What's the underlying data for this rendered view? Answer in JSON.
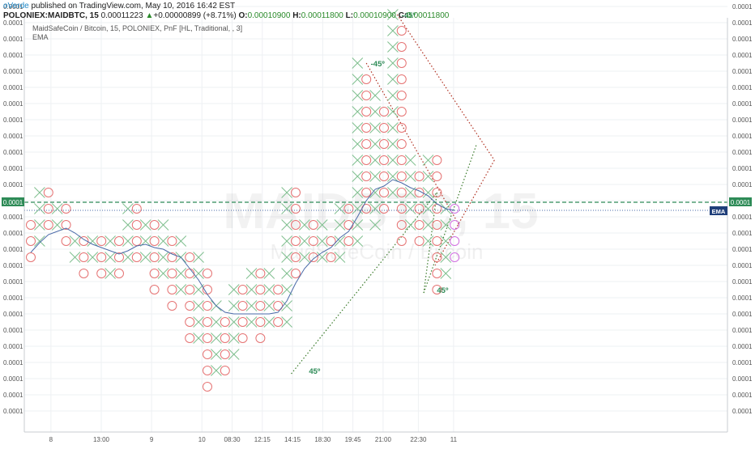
{
  "header": {
    "author": "oVerde",
    "published": "published on TradingView.com, May 10, 2016 16:42 EST",
    "symbol": "POLONIEX:MAIDBTC, 15",
    "last": "0.00011223",
    "change": "+0.00000899 (+8.71%)",
    "o_label": "O:",
    "o_value": "0.00010900",
    "h_label": "H:",
    "h_value": "0.00011800",
    "l_label": "L:",
    "l_value": "0.00010900",
    "c_label": "C:",
    "c_value": "0.00011800"
  },
  "chart_title": "MaidSafeCoin / Bitcoin, 15, POLONIEX, PnF [HL, Traditional, , 3]",
  "indicator": "EMA",
  "watermark": {
    "symbol": "MAIDBTC, 15",
    "name": "MaidSafeCoin / Bitcoin"
  },
  "colors": {
    "x_mark": "#7fbf8f",
    "o_mark": "#e57373",
    "o_pending": "#d070e0",
    "ema": "#4a6aa8",
    "level": "#2e8b57",
    "trend_red": "#b03020",
    "trend_green": "#3a7a2a",
    "annotation": "#2e8b57",
    "ema_tag": "#1f3f7a"
  },
  "chart_data": {
    "type": "point-and-figure",
    "box_count_range": [
      0,
      25
    ],
    "y_tick_labels": [
      "0.0001",
      "0.0001",
      "0.0001",
      "0.0001",
      "0.0001",
      "0.0001",
      "0.0001",
      "0.0001",
      "0.0001",
      "0.0001",
      "0.0001",
      "0.0001",
      "0.0001",
      "0.0001",
      "0.0001",
      "0.0001",
      "0.0001",
      "0.0001",
      "0.0001",
      "0.0001",
      "0.0001",
      "0.0001",
      "0.0001",
      "0.0001",
      "0.0001",
      "0.0001"
    ],
    "x_tick_labels": [
      {
        "label": "8",
        "col": 2
      },
      {
        "label": "13:00",
        "col": 7
      },
      {
        "label": "9",
        "col": 12
      },
      {
        "label": "10",
        "col": 17
      },
      {
        "label": "08:30",
        "col": 20
      },
      {
        "label": "12:15",
        "col": 23
      },
      {
        "label": "14:15",
        "col": 26
      },
      {
        "label": "18:30",
        "col": 29
      },
      {
        "label": "19:45",
        "col": 32
      },
      {
        "label": "21:00",
        "col": 35
      },
      {
        "label": "22:30",
        "col": 38.5
      },
      {
        "label": "11",
        "col": 42
      }
    ],
    "current_level": {
      "label": "0.0001",
      "box": 13.5
    },
    "ema_tag": "EMA",
    "columns": [
      {
        "type": "O",
        "low": 10,
        "high": 12
      },
      {
        "type": "X",
        "low": 11,
        "high": 14
      },
      {
        "type": "O",
        "low": 12,
        "high": 14
      },
      {
        "type": "X",
        "low": 12,
        "high": 13
      },
      {
        "type": "O",
        "low": 11,
        "high": 13
      },
      {
        "type": "X",
        "low": 10,
        "high": 11
      },
      {
        "type": "O",
        "low": 9,
        "high": 11
      },
      {
        "type": "X",
        "low": 10,
        "high": 11
      },
      {
        "type": "O",
        "low": 9,
        "high": 11
      },
      {
        "type": "X",
        "low": 9,
        "high": 11
      },
      {
        "type": "O",
        "low": 9,
        "high": 11
      },
      {
        "type": "X",
        "low": 10,
        "high": 13
      },
      {
        "type": "O",
        "low": 10,
        "high": 13
      },
      {
        "type": "X",
        "low": 10,
        "high": 12
      },
      {
        "type": "O",
        "low": 8,
        "high": 12
      },
      {
        "type": "X",
        "low": 9,
        "high": 12
      },
      {
        "type": "O",
        "low": 7,
        "high": 11
      },
      {
        "type": "X",
        "low": 8,
        "high": 11
      },
      {
        "type": "O",
        "low": 5,
        "high": 10
      },
      {
        "type": "X",
        "low": 5,
        "high": 10
      },
      {
        "type": "O",
        "low": 2,
        "high": 9
      },
      {
        "type": "X",
        "low": 3,
        "high": 7
      },
      {
        "type": "O",
        "low": 3,
        "high": 6
      },
      {
        "type": "X",
        "low": 4,
        "high": 8
      },
      {
        "type": "O",
        "low": 5,
        "high": 8
      },
      {
        "type": "X",
        "low": 6,
        "high": 9
      },
      {
        "type": "O",
        "low": 5,
        "high": 9
      },
      {
        "type": "X",
        "low": 6,
        "high": 9
      },
      {
        "type": "O",
        "low": 6,
        "high": 8
      },
      {
        "type": "X",
        "low": 6,
        "high": 14
      },
      {
        "type": "O",
        "low": 9,
        "high": 14
      },
      {
        "type": "X",
        "low": 10,
        "high": 12
      },
      {
        "type": "O",
        "low": 10,
        "high": 12
      },
      {
        "type": "X",
        "low": 10,
        "high": 12
      },
      {
        "type": "O",
        "low": 10,
        "high": 11
      },
      {
        "type": "X",
        "low": 10,
        "high": 13
      },
      {
        "type": "O",
        "low": 11,
        "high": 13
      },
      {
        "type": "X",
        "low": 11,
        "high": 22
      },
      {
        "type": "O",
        "low": 13,
        "high": 21
      },
      {
        "type": "X",
        "low": 12,
        "high": 20
      },
      {
        "type": "O",
        "low": 13,
        "high": 19
      },
      {
        "type": "X",
        "low": 14,
        "high": 25
      },
      {
        "type": "O",
        "low": 11,
        "high": 24
      },
      {
        "type": "X",
        "low": 12,
        "high": 16
      },
      {
        "type": "O",
        "low": 11,
        "high": 15
      },
      {
        "type": "X",
        "low": 11,
        "high": 16
      },
      {
        "type": "O",
        "low": 8,
        "high": 16
      },
      {
        "type": "X",
        "low": 9,
        "high": 13
      },
      {
        "type": "O",
        "low": 10,
        "high": 13,
        "pending": true
      }
    ],
    "ema": [
      [
        0,
        10.3
      ],
      [
        1,
        10.9
      ],
      [
        2,
        11.4
      ],
      [
        3,
        11.6
      ],
      [
        4,
        11.8
      ],
      [
        5,
        11.5
      ],
      [
        6,
        11.1
      ],
      [
        7,
        10.8
      ],
      [
        8,
        10.6
      ],
      [
        9,
        10.4
      ],
      [
        10,
        10.2
      ],
      [
        11,
        10.4
      ],
      [
        12,
        10.7
      ],
      [
        13,
        10.8
      ],
      [
        14,
        10.6
      ],
      [
        15,
        10.5
      ],
      [
        16,
        10.2
      ],
      [
        17,
        10.0
      ],
      [
        18,
        9.3
      ],
      [
        19,
        8.6
      ],
      [
        20,
        7.7
      ],
      [
        21,
        7.0
      ],
      [
        22,
        6.6
      ],
      [
        23,
        6.5
      ],
      [
        24,
        6.5
      ],
      [
        25,
        6.5
      ],
      [
        26,
        6.5
      ],
      [
        27,
        6.5
      ],
      [
        28,
        6.6
      ],
      [
        29,
        7.3
      ],
      [
        30,
        8.4
      ],
      [
        31,
        9.3
      ],
      [
        32,
        9.9
      ],
      [
        33,
        10.3
      ],
      [
        34,
        10.6
      ],
      [
        35,
        11.2
      ],
      [
        36,
        11.6
      ],
      [
        37,
        12.5
      ],
      [
        38,
        13.5
      ],
      [
        39,
        14.2
      ],
      [
        40,
        14.4
      ],
      [
        41,
        14.8
      ],
      [
        42,
        14.6
      ],
      [
        43,
        14.3
      ],
      [
        44,
        14.1
      ],
      [
        45,
        13.8
      ],
      [
        46,
        13.3
      ],
      [
        47,
        13.0
      ],
      [
        48,
        12.9
      ]
    ],
    "trendlines": [
      {
        "color": "red",
        "from": [
          41.5,
          25
        ],
        "to": [
          52.5,
          16
        ]
      },
      {
        "color": "red",
        "from": [
          38,
          22
        ],
        "to": [
          48.5,
          12
        ]
      },
      {
        "color": "red",
        "from": [
          52.5,
          16
        ],
        "to": [
          45.8,
          9.5
        ]
      },
      {
        "color": "green",
        "from": [
          29.5,
          2.8
        ],
        "to": [
          46,
          14
        ]
      },
      {
        "color": "green",
        "from": [
          44.5,
          7.8
        ],
        "to": [
          50.5,
          17
        ]
      },
      {
        "color": "green",
        "from": [
          46,
          14
        ],
        "to": [
          44.5,
          7.8
        ]
      }
    ],
    "annotations": [
      {
        "text": "-45º",
        "col": 42,
        "box": 25
      },
      {
        "text": "-45º",
        "col": 38.5,
        "box": 22
      },
      {
        "text": "45º",
        "col": 46,
        "box": 8
      },
      {
        "text": "45º",
        "col": 31.5,
        "box": 3
      }
    ]
  }
}
